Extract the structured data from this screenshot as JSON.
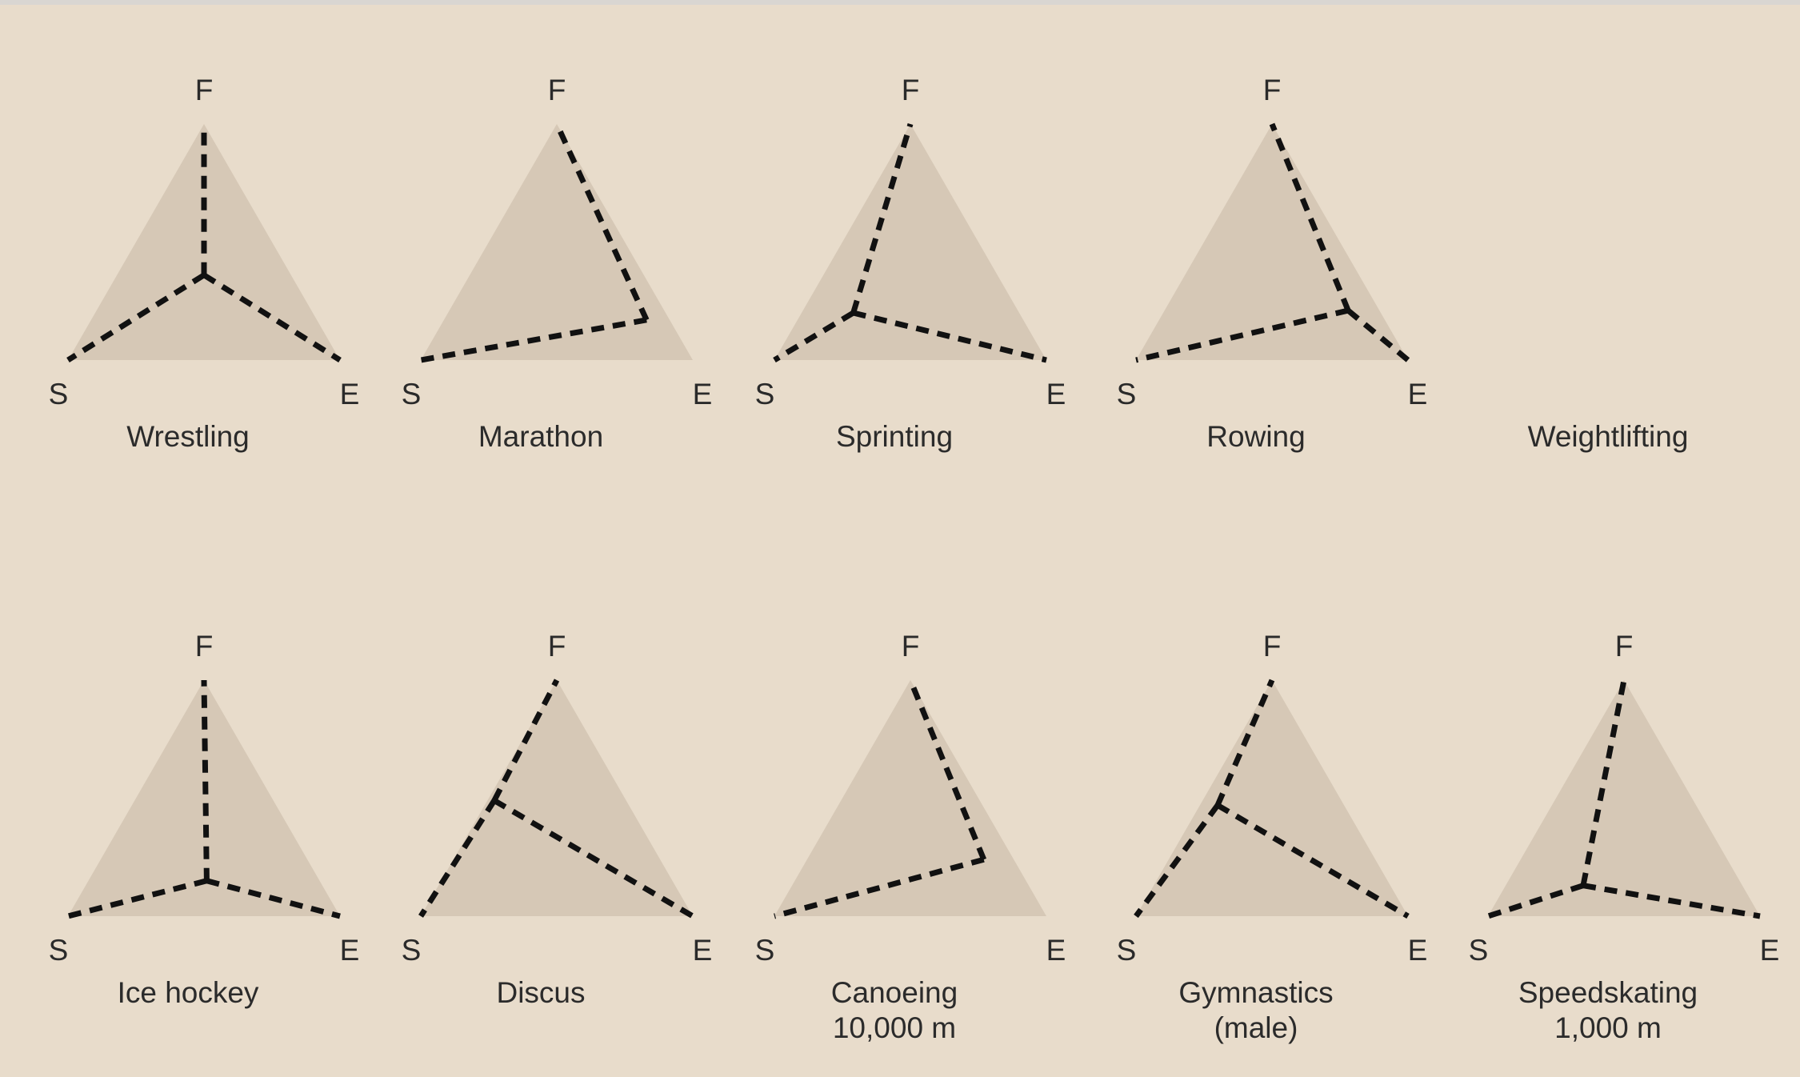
{
  "chart_data": {
    "type": "ternary-radar",
    "vertex_labels": {
      "top": "F",
      "left": "S",
      "right": "E"
    },
    "panels": [
      {
        "sport": [
          "Wrestling"
        ],
        "has_shape": true,
        "center": [
          0.5,
          0.36
        ],
        "spokes": [
          "top",
          "left",
          "right"
        ]
      },
      {
        "sport": [
          "Marathon"
        ],
        "has_shape": true,
        "center": [
          0.83,
          0.17
        ],
        "spokes": [
          "top",
          "left"
        ]
      },
      {
        "sport": [
          "Sprinting"
        ],
        "has_shape": true,
        "center": [
          0.29,
          0.2
        ],
        "spokes": [
          "top",
          "left",
          "right"
        ]
      },
      {
        "sport": [
          "Rowing"
        ],
        "has_shape": true,
        "center": [
          0.78,
          0.21
        ],
        "spokes": [
          "top",
          "left",
          "right"
        ]
      },
      {
        "sport": [
          "Weightlifting"
        ],
        "has_shape": false
      },
      {
        "sport": [
          "Ice hockey"
        ],
        "has_shape": true,
        "center": [
          0.51,
          0.15
        ],
        "spokes": [
          "top",
          "left",
          "right"
        ]
      },
      {
        "sport": [
          "Discus"
        ],
        "has_shape": true,
        "center": [
          0.27,
          0.49
        ],
        "spokes": [
          "top",
          "left",
          "right"
        ]
      },
      {
        "sport": [
          "Canoeing",
          "10,000 m"
        ],
        "has_shape": true,
        "center": [
          0.77,
          0.24
        ],
        "spokes": [
          "top",
          "left"
        ]
      },
      {
        "sport": [
          "Gymnastics",
          "(male)"
        ],
        "has_shape": true,
        "center": [
          0.3,
          0.47
        ],
        "spokes": [
          "top",
          "left",
          "right"
        ]
      },
      {
        "sport": [
          "Speedskating",
          "1,000 m"
        ],
        "has_shape": true,
        "center": [
          0.35,
          0.13
        ],
        "spokes": [
          "top",
          "left",
          "right"
        ]
      }
    ]
  }
}
